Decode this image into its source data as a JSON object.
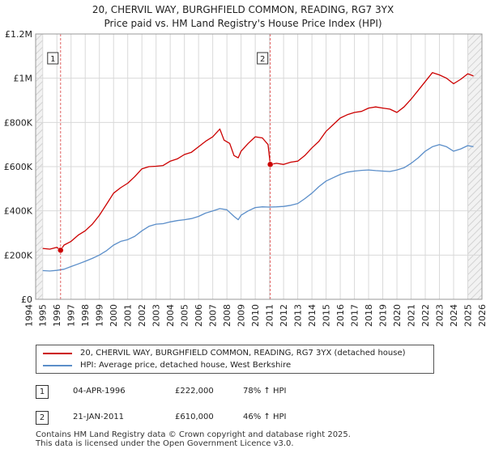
{
  "title_line1": "20, CHERVIL WAY, BURGHFIELD COMMON, READING, RG7 3YX",
  "title_line2": "Price paid vs. HM Land Registry's House Price Index (HPI)",
  "chart_data": {
    "type": "line",
    "x_range": [
      1994.5,
      2026.0
    ],
    "ylim": [
      0,
      1200000
    ],
    "y_ticks": [
      0,
      200000,
      400000,
      600000,
      800000,
      1000000,
      1200000
    ],
    "y_tick_labels": [
      "£0",
      "£200K",
      "£400K",
      "£600K",
      "£800K",
      "£1M",
      "£1.2M"
    ],
    "x_ticks": [
      1994,
      1995,
      1996,
      1997,
      1998,
      1999,
      2000,
      2001,
      2002,
      2003,
      2004,
      2005,
      2006,
      2007,
      2008,
      2009,
      2010,
      2011,
      2012,
      2013,
      2014,
      2015,
      2016,
      2017,
      2018,
      2019,
      2020,
      2021,
      2022,
      2023,
      2024,
      2025,
      2026
    ],
    "x_tick_labels": [
      "1994",
      "1995",
      "1996",
      "1997",
      "1998",
      "1999",
      "2000",
      "2001",
      "2002",
      "2003",
      "2004",
      "2005",
      "2006",
      "2007",
      "2008",
      "2009",
      "2010",
      "2011",
      "2012",
      "2013",
      "2014",
      "2015",
      "2016",
      "2017",
      "2018",
      "2019",
      "2020",
      "2021",
      "2022",
      "2023",
      "2024",
      "2025",
      "2026"
    ],
    "grid": true,
    "hatched_before": 1995.0,
    "hatched_after": 2025.0,
    "colors": {
      "property": "#cc0000",
      "hpi": "#5b8ec9",
      "grid": "#d9d9d9",
      "annotation": "#e06060"
    },
    "series": [
      {
        "name": "20, CHERVIL WAY, BURGHFIELD COMMON, READING, RG7 3YX (detached house)",
        "color": "#cc0000",
        "x": [
          1995.0,
          1995.5,
          1996.0,
          1996.26,
          1996.5,
          1997.0,
          1997.5,
          1998.0,
          1998.5,
          1999.0,
          1999.5,
          2000.0,
          2000.5,
          2001.0,
          2001.5,
          2002.0,
          2002.5,
          2003.0,
          2003.5,
          2004.0,
          2004.5,
          2005.0,
          2005.5,
          2006.0,
          2006.5,
          2007.0,
          2007.5,
          2007.8,
          2008.2,
          2008.5,
          2008.8,
          2009.0,
          2009.5,
          2010.0,
          2010.5,
          2010.9,
          2011.06,
          2011.5,
          2012.0,
          2012.5,
          2013.0,
          2013.5,
          2014.0,
          2014.5,
          2015.0,
          2015.5,
          2016.0,
          2016.5,
          2017.0,
          2017.5,
          2018.0,
          2018.5,
          2019.0,
          2019.5,
          2020.0,
          2020.5,
          2021.0,
          2021.5,
          2022.0,
          2022.5,
          2023.0,
          2023.5,
          2024.0,
          2024.5,
          2025.0,
          2025.4
        ],
        "values": [
          230000,
          227000,
          235000,
          222000,
          245000,
          262000,
          290000,
          310000,
          340000,
          380000,
          430000,
          480000,
          505000,
          525000,
          555000,
          590000,
          600000,
          602000,
          605000,
          625000,
          635000,
          655000,
          665000,
          690000,
          715000,
          735000,
          770000,
          720000,
          705000,
          650000,
          640000,
          670000,
          705000,
          735000,
          730000,
          700000,
          610000,
          615000,
          610000,
          620000,
          625000,
          650000,
          685000,
          715000,
          760000,
          790000,
          820000,
          835000,
          845000,
          850000,
          865000,
          870000,
          865000,
          860000,
          845000,
          870000,
          905000,
          945000,
          985000,
          1025000,
          1015000,
          1000000,
          975000,
          995000,
          1020000,
          1010000
        ]
      },
      {
        "name": "HPI: Average price, detached house, West Berkshire",
        "color": "#5b8ec9",
        "x": [
          1995.0,
          1995.5,
          1996.0,
          1996.5,
          1997.0,
          1997.5,
          1998.0,
          1998.5,
          1999.0,
          1999.5,
          2000.0,
          2000.5,
          2001.0,
          2001.5,
          2002.0,
          2002.5,
          2003.0,
          2003.5,
          2004.0,
          2004.5,
          2005.0,
          2005.5,
          2006.0,
          2006.5,
          2007.0,
          2007.5,
          2008.0,
          2008.5,
          2008.8,
          2009.0,
          2009.5,
          2010.0,
          2010.5,
          2011.0,
          2011.5,
          2012.0,
          2012.5,
          2013.0,
          2013.5,
          2014.0,
          2014.5,
          2015.0,
          2015.5,
          2016.0,
          2016.5,
          2017.0,
          2017.5,
          2018.0,
          2018.5,
          2019.0,
          2019.5,
          2020.0,
          2020.5,
          2021.0,
          2021.5,
          2022.0,
          2022.5,
          2023.0,
          2023.5,
          2024.0,
          2024.5,
          2025.0,
          2025.4
        ],
        "values": [
          130000,
          128000,
          131000,
          136000,
          148000,
          160000,
          172000,
          185000,
          200000,
          220000,
          245000,
          262000,
          270000,
          285000,
          310000,
          330000,
          340000,
          342000,
          350000,
          356000,
          360000,
          365000,
          375000,
          390000,
          400000,
          410000,
          405000,
          375000,
          360000,
          380000,
          400000,
          415000,
          418000,
          417000,
          418000,
          420000,
          425000,
          433000,
          455000,
          480000,
          510000,
          535000,
          550000,
          565000,
          575000,
          580000,
          583000,
          585000,
          582000,
          580000,
          578000,
          585000,
          595000,
          615000,
          640000,
          670000,
          690000,
          700000,
          690000,
          670000,
          680000,
          695000,
          690000
        ]
      }
    ],
    "sales": [
      {
        "label": "1",
        "x": 1996.26,
        "value": 222000,
        "date": "04-APR-1996",
        "price": "£222,000",
        "hpi_change": "78% ↑ HPI"
      },
      {
        "label": "2",
        "x": 2011.06,
        "value": 610000,
        "date": "21-JAN-2011",
        "price": "£610,000",
        "hpi_change": "46% ↑ HPI"
      }
    ]
  },
  "legend": {
    "property_label": "20, CHERVIL WAY, BURGHFIELD COMMON, READING, RG7 3YX (detached house)",
    "hpi_label": "HPI: Average price, detached house, West Berkshire"
  },
  "footer_line1": "Contains HM Land Registry data © Crown copyright and database right 2025.",
  "footer_line2": "This data is licensed under the Open Government Licence v3.0."
}
